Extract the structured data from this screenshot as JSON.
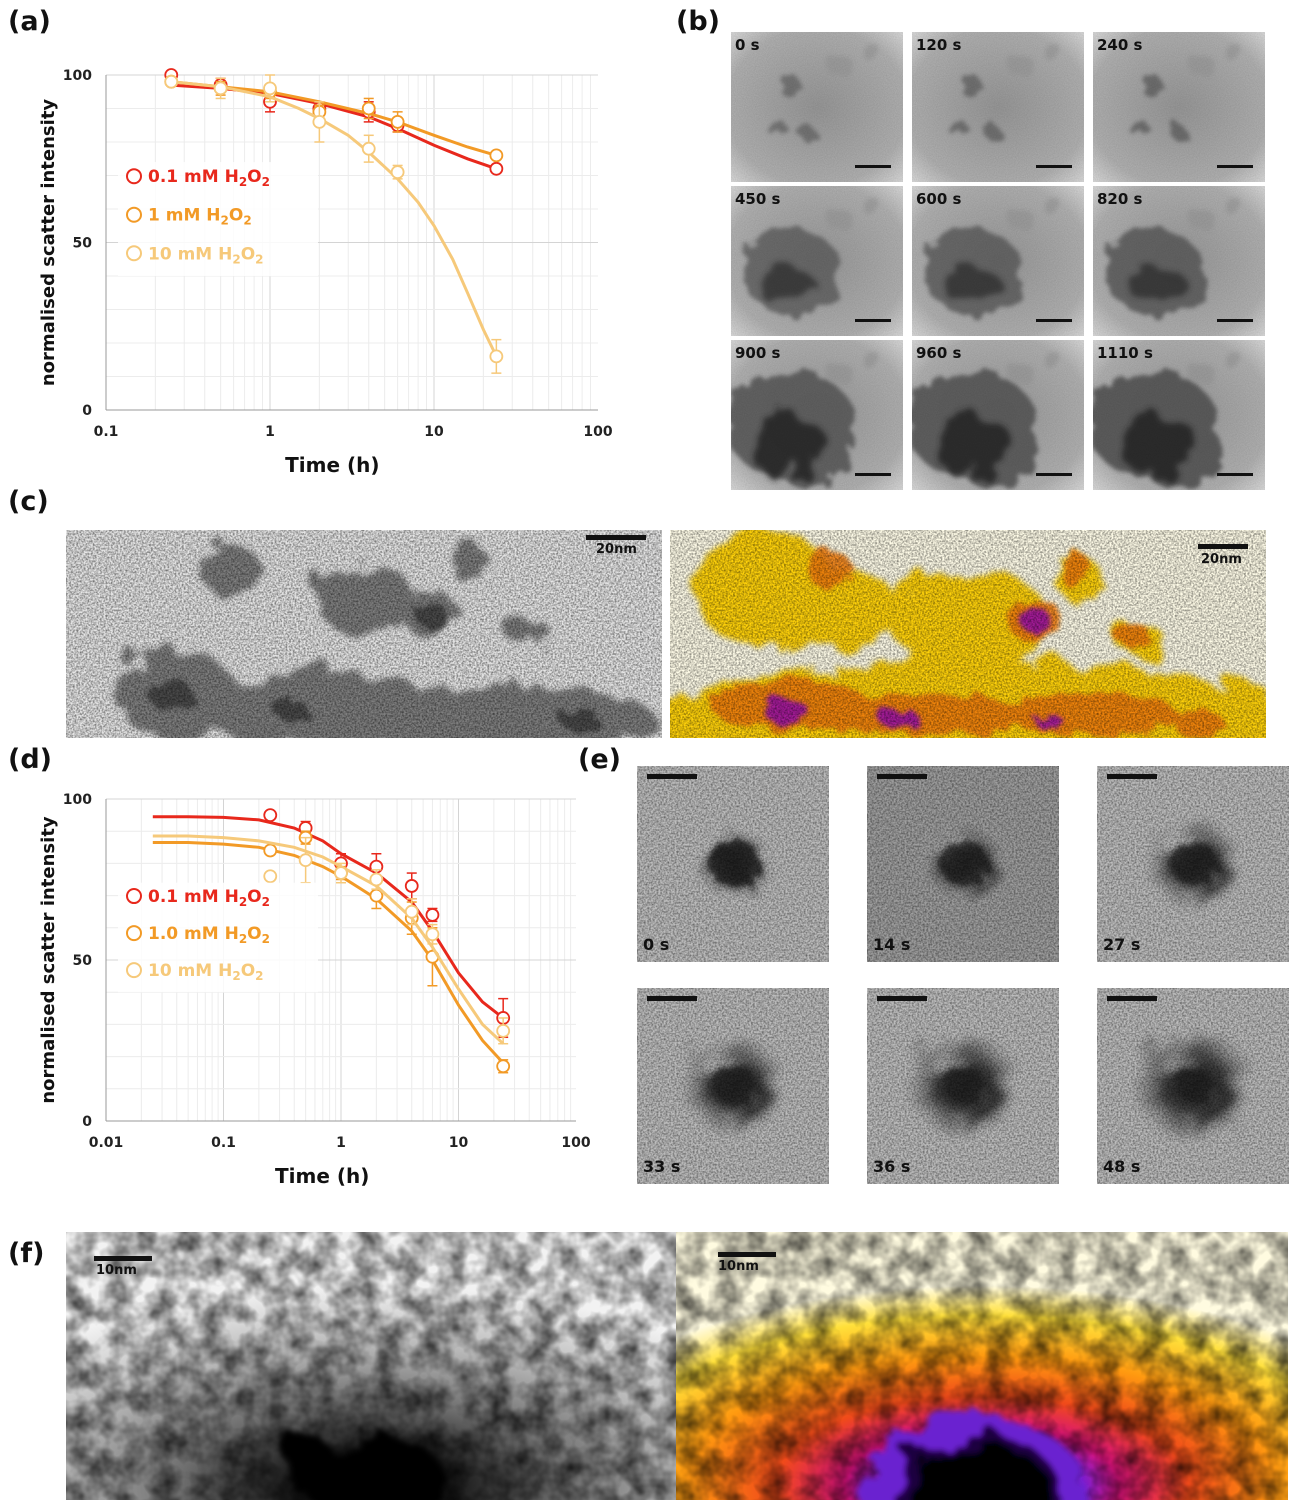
{
  "panels": {
    "a": "(a)",
    "b": "(b)",
    "c": "(c)",
    "d": "(d)",
    "e": "(e)",
    "f": "(f)"
  },
  "colors": {
    "low": "#e8281c",
    "mid": "#f29a26",
    "high": "#f6c97a"
  },
  "chart_data": [
    {
      "id": "a",
      "type": "line",
      "xscale": "log",
      "xlim": [
        0.1,
        100
      ],
      "ylim": [
        0,
        100
      ],
      "xticks": [
        "0.1",
        "1",
        "10",
        "100"
      ],
      "yticks": [
        "0",
        "50",
        "100"
      ],
      "xlabel": "Time (h)",
      "ylabel": "normalised scatter intensity",
      "legend_position": "left-middle",
      "grid": true,
      "series": [
        {
          "name": "0.1 mM H2O2",
          "label_main": "0.1 mM H",
          "sub1": "2",
          "mid": "O",
          "sub2": "2",
          "color": "#e8281c",
          "x": [
            0.25,
            0.5,
            1,
            2,
            4,
            6,
            24
          ],
          "y": [
            100,
            97,
            92,
            90,
            89,
            85,
            72
          ],
          "err": [
            1,
            2,
            3,
            2,
            3,
            2,
            1
          ],
          "fit_x": [
            0.25,
            0.5,
            1,
            2,
            4,
            6,
            10,
            16,
            24
          ],
          "fit_y": [
            97,
            96,
            94.5,
            91.5,
            87.5,
            84,
            79,
            75,
            72
          ]
        },
        {
          "name": "1 mM H2O2",
          "label_main": "1 mM H",
          "sub1": "2",
          "mid": "O",
          "sub2": "2",
          "color": "#f29a26",
          "x": [
            0.25,
            0.5,
            1,
            2,
            4,
            6,
            24
          ],
          "y": [
            98,
            96,
            95,
            89,
            90,
            86,
            76
          ],
          "err": [
            1,
            2,
            2,
            2,
            3,
            3,
            1
          ],
          "fit_x": [
            0.25,
            0.5,
            1,
            2,
            4,
            6,
            10,
            16,
            24
          ],
          "fit_y": [
            98,
            96.5,
            95,
            92,
            88.5,
            86,
            82,
            78.5,
            76
          ]
        },
        {
          "name": "10 mM H2O2",
          "label_main": "10 mM H",
          "sub1": "2",
          "mid": "O",
          "sub2": "2",
          "color": "#f6c97a",
          "x": [
            0.25,
            0.5,
            1,
            2,
            4,
            6,
            24
          ],
          "y": [
            98,
            96,
            96,
            86,
            78,
            71,
            16
          ],
          "err": [
            1,
            3,
            4,
            6,
            4,
            2,
            5
          ],
          "fit_x": [
            0.25,
            0.5,
            1,
            1.5,
            2,
            3,
            4,
            6,
            8,
            10,
            13,
            16,
            20,
            24
          ],
          "fit_y": [
            98,
            96.5,
            93.5,
            90,
            87,
            82,
            77,
            69,
            62,
            55,
            45,
            35,
            24,
            16
          ]
        }
      ]
    },
    {
      "id": "d",
      "type": "line",
      "xscale": "log",
      "xlim": [
        0.01,
        100
      ],
      "ylim": [
        0,
        100
      ],
      "xticks": [
        "0.01",
        "0.1",
        "1",
        "10",
        "100"
      ],
      "yticks": [
        "0",
        "50",
        "100"
      ],
      "xlabel": "Time (h)",
      "ylabel": "normalised scatter intensity",
      "legend_position": "left-middle",
      "grid": true,
      "series": [
        {
          "name": "0.1 mM H2O2",
          "label_main": "0.1 mM H",
          "sub1": "2",
          "mid": "O",
          "sub2": "2",
          "color": "#e8281c",
          "x": [
            0.25,
            0.5,
            1,
            2,
            4,
            6,
            24
          ],
          "y": [
            95,
            91,
            80,
            79,
            73,
            64,
            32
          ],
          "err": [
            1,
            2,
            3,
            4,
            4,
            2,
            6
          ],
          "fit_x": [
            0.025,
            0.05,
            0.1,
            0.2,
            0.4,
            0.7,
            1,
            2,
            4,
            6,
            10,
            16,
            24
          ],
          "fit_y": [
            94.5,
            94.5,
            94.3,
            93.5,
            91,
            87,
            83,
            77,
            68,
            59,
            46,
            37,
            32
          ]
        },
        {
          "name": "1.0 mM H2O2",
          "label_main": "1.0 mM H",
          "sub1": "2",
          "mid": "O",
          "sub2": "2",
          "color": "#f29a26",
          "x": [
            0.25,
            0.5,
            1,
            2,
            4,
            6,
            24
          ],
          "y": [
            84,
            88,
            77,
            70,
            63,
            51,
            17
          ],
          "err": [
            1,
            2,
            2,
            4,
            5,
            9,
            2
          ],
          "fit_x": [
            0.025,
            0.05,
            0.1,
            0.2,
            0.4,
            0.7,
            1,
            2,
            4,
            6,
            10,
            16,
            24
          ],
          "fit_y": [
            86.5,
            86.5,
            86,
            85,
            82.5,
            79,
            76,
            69,
            59,
            50,
            36,
            25,
            18
          ]
        },
        {
          "name": "10 mM H2O2",
          "label_main": "10 mM H",
          "sub1": "2",
          "mid": "O",
          "sub2": "2",
          "color": "#f6c97a",
          "x": [
            0.25,
            0.5,
            1,
            2,
            4,
            6,
            24
          ],
          "y": [
            76,
            81,
            77,
            75,
            65,
            58,
            28
          ],
          "err": [
            1,
            7,
            3,
            3,
            4,
            3,
            4
          ],
          "fit_x": [
            0.025,
            0.05,
            0.1,
            0.2,
            0.4,
            0.7,
            1,
            2,
            4,
            6,
            10,
            16,
            24
          ],
          "fit_y": [
            88.5,
            88.5,
            88,
            87,
            85,
            82,
            79,
            73,
            63,
            54,
            41,
            30,
            24
          ]
        }
      ]
    }
  ],
  "panel_b": {
    "frames": [
      "0 s",
      "120 s",
      "240 s",
      "450 s",
      "600 s",
      "820 s",
      "900 s",
      "960 s",
      "1110 s"
    ]
  },
  "panel_c": {
    "scale_left": "20nm",
    "scale_right": "20nm"
  },
  "panel_e": {
    "frames": [
      "0 s",
      "14 s",
      "27 s",
      "33 s",
      "36 s",
      "48 s"
    ]
  },
  "panel_f": {
    "scale_left": "10nm",
    "scale_right": "10nm"
  }
}
